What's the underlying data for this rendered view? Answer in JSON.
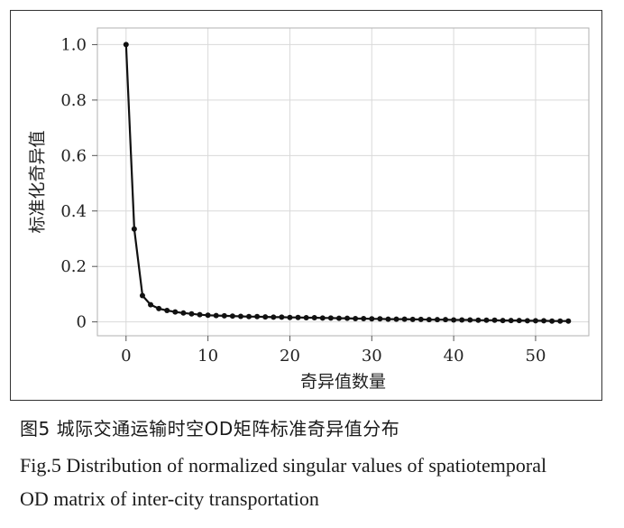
{
  "caption": {
    "zh": "图5 城际交通运输时空OD矩阵标准奇异值分布",
    "en_line1": "Fig.5  Distribution of normalized singular values of spatiotemporal",
    "en_line2": "OD matrix of inter-city transportation"
  },
  "chart_data": {
    "type": "line",
    "title": "",
    "xlabel": "奇异值数量",
    "ylabel": "标准化奇异值",
    "xlim": [
      -3.5,
      56.5
    ],
    "ylim": [
      -0.05,
      1.06
    ],
    "xticks": [
      0,
      10,
      20,
      30,
      40,
      50
    ],
    "yticks": [
      0,
      0.2,
      0.4,
      0.6,
      0.8,
      1.0
    ],
    "ytick_labels": [
      "0",
      "0.2",
      "0.4",
      "0.6",
      "0.8",
      "1.0"
    ],
    "grid": true,
    "legend": "none",
    "line_color": "#111111",
    "grid_color": "#d9d9d9",
    "series": [
      {
        "name": "",
        "x": [
          0,
          1,
          2,
          3,
          4,
          5,
          6,
          7,
          8,
          9,
          10,
          11,
          12,
          13,
          14,
          15,
          16,
          17,
          18,
          19,
          20,
          21,
          22,
          23,
          24,
          25,
          26,
          27,
          28,
          29,
          30,
          31,
          32,
          33,
          34,
          35,
          36,
          37,
          38,
          39,
          40,
          41,
          42,
          43,
          44,
          45,
          46,
          47,
          48,
          49,
          50,
          51,
          52,
          53,
          54
        ],
        "y": [
          1.0,
          0.335,
          0.095,
          0.062,
          0.048,
          0.041,
          0.036,
          0.032,
          0.029,
          0.026,
          0.024,
          0.023,
          0.022,
          0.021,
          0.02,
          0.019,
          0.019,
          0.018,
          0.017,
          0.017,
          0.016,
          0.016,
          0.015,
          0.015,
          0.014,
          0.014,
          0.013,
          0.013,
          0.012,
          0.012,
          0.011,
          0.011,
          0.01,
          0.01,
          0.01,
          0.009,
          0.009,
          0.008,
          0.008,
          0.008,
          0.007,
          0.007,
          0.007,
          0.006,
          0.006,
          0.006,
          0.005,
          0.005,
          0.005,
          0.004,
          0.004,
          0.004,
          0.003,
          0.003,
          0.003
        ]
      }
    ]
  }
}
